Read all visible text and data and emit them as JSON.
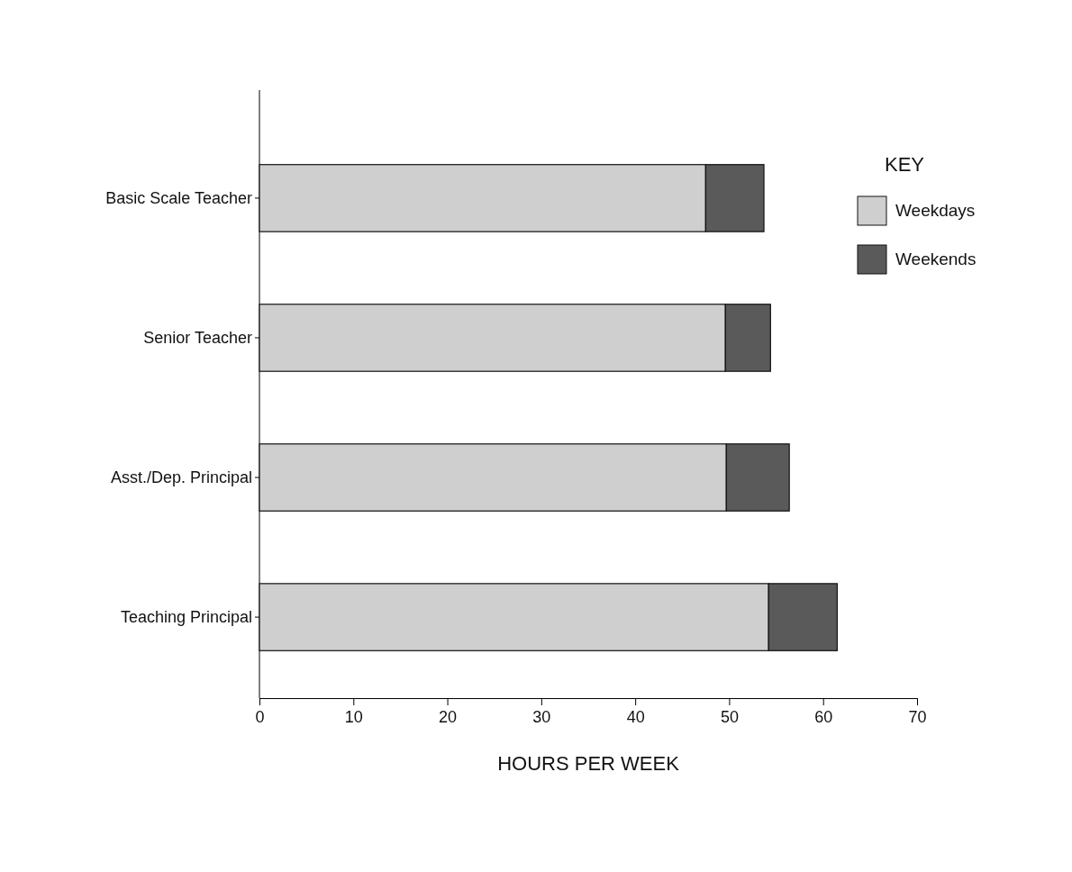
{
  "chart_data": {
    "type": "bar",
    "orientation": "horizontal",
    "stacked": true,
    "xlabel": "HOURS PER WEEK",
    "legend_title": "KEY",
    "legend": "right",
    "categories": [
      "Basic Scale Teacher",
      "Senior Teacher",
      "Asst./Dep. Principal",
      "Teaching Principal"
    ],
    "series": [
      {
        "name": "Weekdays",
        "color": "#cfcfcf",
        "values": [
          47.5,
          49.6,
          49.7,
          54.2
        ]
      },
      {
        "name": "Weekends",
        "color": "#5a5a5a",
        "values": [
          6.2,
          4.8,
          6.7,
          7.3
        ]
      }
    ],
    "xlim": [
      0,
      70
    ],
    "xticks": [
      0,
      10,
      20,
      30,
      40,
      50,
      60,
      70
    ]
  }
}
